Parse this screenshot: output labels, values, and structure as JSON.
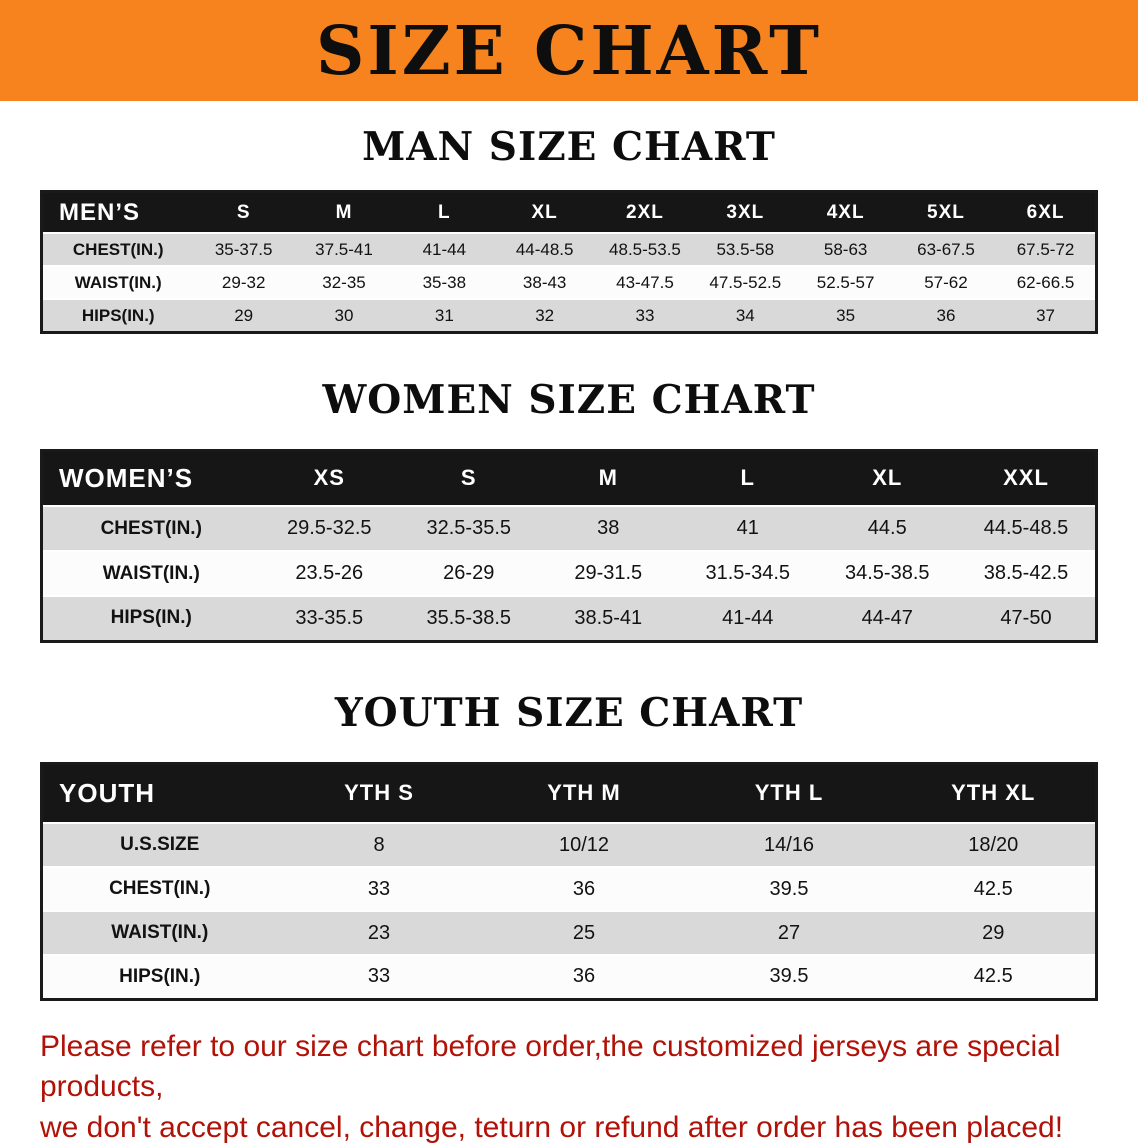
{
  "banner": {
    "title": "SIZE CHART"
  },
  "sections": [
    {
      "heading": "MAN SIZE CHART",
      "table": {
        "header": [
          "MEN’S",
          "S",
          "M",
          "L",
          "XL",
          "2XL",
          "3XL",
          "4XL",
          "5XL",
          "6XL"
        ],
        "rows": [
          [
            "CHEST(IN.)",
            "35-37.5",
            "37.5-41",
            "41-44",
            "44-48.5",
            "48.5-53.5",
            "53.5-58",
            "58-63",
            "63-67.5",
            "67.5-72"
          ],
          [
            "WAIST(IN.)",
            "29-32",
            "32-35",
            "35-38",
            "38-43",
            "43-47.5",
            "47.5-52.5",
            "52.5-57",
            "57-62",
            "62-66.5"
          ],
          [
            "HIPS(IN.)",
            "29",
            "30",
            "31",
            "32",
            "33",
            "34",
            "35",
            "36",
            "37"
          ]
        ]
      }
    },
    {
      "heading": "WOMEN SIZE CHART",
      "table": {
        "header": [
          "WOMEN’S",
          "XS",
          "S",
          "M",
          "L",
          "XL",
          "XXL"
        ],
        "rows": [
          [
            "CHEST(IN.)",
            "29.5-32.5",
            "32.5-35.5",
            "38",
            "41",
            "44.5",
            "44.5-48.5"
          ],
          [
            "WAIST(IN.)",
            "23.5-26",
            "26-29",
            "29-31.5",
            "31.5-34.5",
            "34.5-38.5",
            "38.5-42.5"
          ],
          [
            "HIPS(IN.)",
            "33-35.5",
            "35.5-38.5",
            "38.5-41",
            "41-44",
            "44-47",
            "47-50"
          ]
        ]
      }
    },
    {
      "heading": "YOUTH SIZE CHART",
      "table": {
        "header": [
          "YOUTH",
          "YTH S",
          "YTH M",
          "YTH L",
          "YTH XL"
        ],
        "rows": [
          [
            "U.S.SIZE",
            "8",
            "10/12",
            "14/16",
            "18/20"
          ],
          [
            "CHEST(IN.)",
            "33",
            "36",
            "39.5",
            "42.5"
          ],
          [
            "WAIST(IN.)",
            "23",
            "25",
            "27",
            "29"
          ],
          [
            "HIPS(IN.)",
            "33",
            "36",
            "39.5",
            "42.5"
          ]
        ]
      }
    }
  ],
  "disclaimer": {
    "line1": "Please refer to our size chart before order,the customized jerseys are special products,",
    "line2": "we don't accept cancel, change, teturn or refund after order has been placed!"
  },
  "colors": {
    "banner_bg": "#F6831E",
    "banner_text": "#0E0E0E",
    "header_bg": "#161616",
    "header_text": "#FFFFFF",
    "row_alt": "#D9D9D9",
    "row_base": "#FCFCFC",
    "border": "#1A1A1A",
    "disclaimer": "#B11208"
  }
}
